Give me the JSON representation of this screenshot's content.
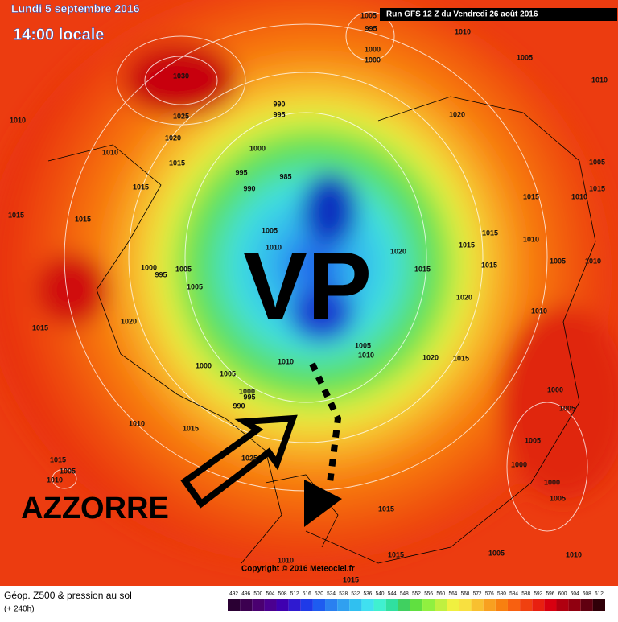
{
  "header": {
    "date": "Lundi 5 septembre 2016",
    "time": "14:00 locale",
    "run": "Run GFS 12 Z du Vendredi 26 août 2016"
  },
  "annotations": {
    "vortex": "VP",
    "region": "AZZORRE"
  },
  "isobars": [
    1030,
    1025,
    1020,
    1010,
    1010,
    1015,
    1015,
    1015,
    1015,
    990,
    995,
    1000,
    985,
    995,
    990,
    1005,
    1010,
    1000,
    995,
    1005,
    1005,
    1020,
    1015,
    1000,
    1005,
    1010,
    1000,
    995,
    990,
    1010,
    1015,
    1025,
    1015,
    1005,
    1010,
    1005,
    995,
    1000,
    1000,
    1010,
    1005,
    1010,
    1020,
    1005,
    1015,
    1015,
    1010,
    1015,
    1015,
    1010,
    1020,
    1015,
    1015,
    1005,
    1010,
    1020,
    1010,
    1005,
    1010,
    1020,
    1015,
    1000,
    1005,
    1005,
    1000,
    1000,
    1005,
    1015,
    1005,
    1010,
    1015,
    1010,
    1015
  ],
  "copyright": "Copyright © 2016 Meteociel.fr",
  "legend": {
    "title": "Géop. Z500 & pression au sol",
    "subtitle": "(+ 240h)",
    "ticks": [
      492,
      496,
      500,
      504,
      508,
      512,
      516,
      520,
      524,
      528,
      532,
      536,
      540,
      544,
      548,
      552,
      556,
      560,
      564,
      568,
      572,
      576,
      580,
      584,
      588,
      592,
      596,
      600,
      604,
      608,
      612
    ],
    "colors": [
      "#2a0033",
      "#3c0050",
      "#4a0070",
      "#4b0090",
      "#3f00b0",
      "#2f1ad0",
      "#1f3ae8",
      "#1e5cf0",
      "#2a80f0",
      "#30a0f0",
      "#30c0f0",
      "#40e0f0",
      "#40f0d0",
      "#30e0a0",
      "#40d060",
      "#60e040",
      "#90f040",
      "#c0f040",
      "#f0f040",
      "#f8e040",
      "#f8c030",
      "#f8a020",
      "#f88010",
      "#f86010",
      "#f04010",
      "#e82010",
      "#d80010",
      "#b00010",
      "#900010",
      "#600010",
      "#300008"
    ]
  }
}
